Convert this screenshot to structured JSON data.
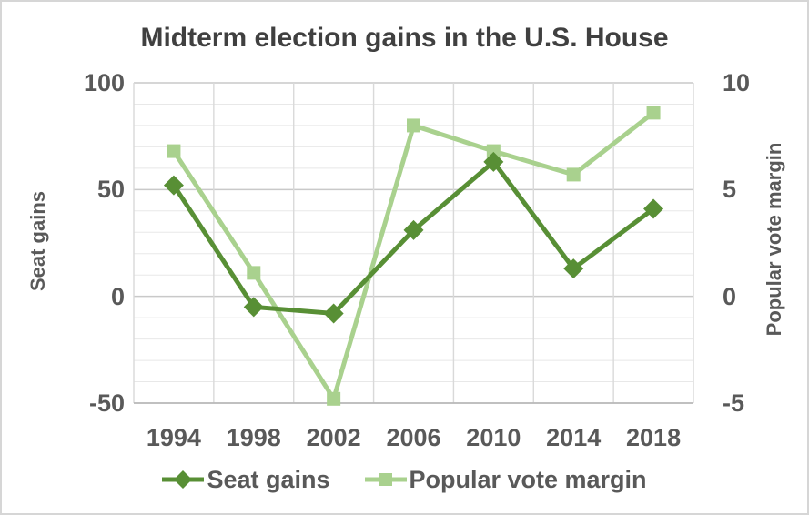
{
  "title": {
    "text": "Midterm election gains in the U.S. House",
    "color": "#404040"
  },
  "text_color": "#595959",
  "frame": {
    "border_color": "#d6d6d6",
    "background": "#ffffff"
  },
  "chart_data": {
    "type": "line",
    "title": "Midterm election gains in the U.S. House",
    "categories": [
      "1994",
      "1998",
      "2002",
      "2006",
      "2010",
      "2014",
      "2018"
    ],
    "series": [
      {
        "name": "Seat gains",
        "axis": "left",
        "marker": "diamond",
        "color": "#588f35",
        "line_width": 5,
        "values": [
          52,
          -5,
          -8,
          31,
          63,
          13,
          41
        ]
      },
      {
        "name": "Popular vote margin",
        "axis": "right",
        "marker": "square",
        "color": "#a9d18e",
        "line_width": 5,
        "values": [
          6.8,
          1.1,
          -4.8,
          8.0,
          6.8,
          5.7,
          8.6
        ]
      }
    ],
    "left_axis": {
      "title": "Seat gains",
      "tick_labels": [
        "100",
        "50",
        "0",
        "-50"
      ],
      "tick_values": [
        100,
        50,
        0,
        -50
      ],
      "min": -50,
      "max": 100,
      "minor_step": 10,
      "major_step": 50
    },
    "right_axis": {
      "title": "Popular vote margin",
      "tick_labels": [
        "10",
        "5",
        "0",
        "-5"
      ],
      "tick_values": [
        10,
        5,
        0,
        -5
      ],
      "min": -5,
      "max": 10
    },
    "grid": {
      "horizontal_minor": true,
      "vertical_category_boundaries": true,
      "minor_color": "#e8e8e8",
      "major_color": "#c9c9c9",
      "vertical_color": "#d9d9d9",
      "axis_line_color": "#b3b3b3"
    },
    "legend_position": "bottom"
  }
}
